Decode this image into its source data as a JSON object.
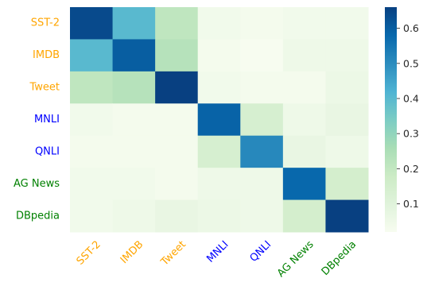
{
  "chart_data": {
    "type": "heatmap",
    "title": "",
    "xlabel": "",
    "ylabel": "",
    "rows": [
      "SST-2",
      "IMDB",
      "Tweet",
      "MNLI",
      "QNLI",
      "AG News",
      "DBpedia"
    ],
    "cols": [
      "SST-2",
      "IMDB",
      "Tweet",
      "MNLI",
      "QNLI",
      "AG News",
      "DBpedia"
    ],
    "label_colors": [
      "#FFA500",
      "#FFA500",
      "#FFA500",
      "#0000FF",
      "#0000FF",
      "#008000",
      "#008000"
    ],
    "values": [
      [
        0.64,
        0.4,
        0.21,
        0.04,
        0.03,
        0.04,
        0.04
      ],
      [
        0.4,
        0.6,
        0.23,
        0.03,
        0.02,
        0.05,
        0.05
      ],
      [
        0.21,
        0.23,
        0.66,
        0.04,
        0.03,
        0.03,
        0.06
      ],
      [
        0.04,
        0.03,
        0.03,
        0.59,
        0.14,
        0.05,
        0.07
      ],
      [
        0.03,
        0.03,
        0.03,
        0.14,
        0.51,
        0.07,
        0.05
      ],
      [
        0.04,
        0.04,
        0.03,
        0.05,
        0.05,
        0.58,
        0.15
      ],
      [
        0.04,
        0.05,
        0.07,
        0.06,
        0.05,
        0.15,
        0.66
      ]
    ],
    "colormap": "GnBu",
    "vmin": 0.02,
    "vmax": 0.66,
    "colorbar_ticks": [
      0.1,
      0.2,
      0.3,
      0.4,
      0.5,
      0.6
    ],
    "colorbar_tick_labels": [
      "0.1",
      "0.2",
      "0.3",
      "0.4",
      "0.5",
      "0.6"
    ],
    "grid": false
  }
}
